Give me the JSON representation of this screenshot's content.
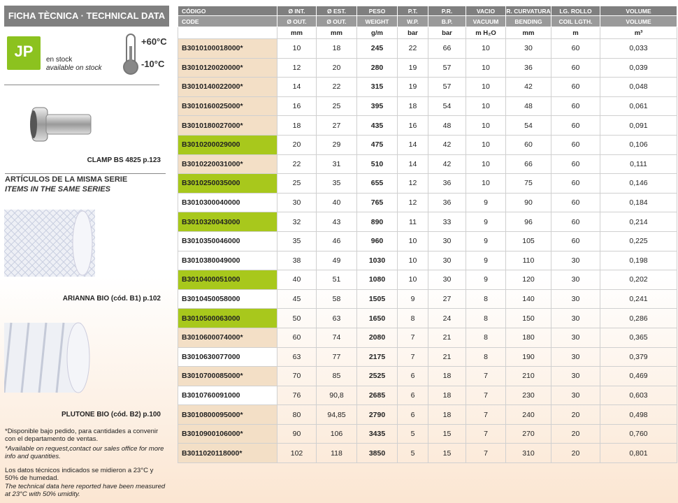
{
  "sidebar": {
    "title": "FICHA TÈCNICA · TECHNICAL DATA",
    "logo": "JP",
    "stock_es": "en stock",
    "stock_en": "available on stock",
    "temp_max": "+60°C",
    "temp_min": "-10°C",
    "clamp_caption": "CLAMP BS 4825 p.123",
    "series_title_es": "ARTÍCULOS DE LA MISMA SERIE",
    "series_title_en": "ITEMS IN THE SAME SERIES",
    "item1_caption": "ARIANNA BIO (cód. B1) p.102",
    "item2_caption": "PLUTONE BIO (cód. B2) p.100",
    "note1_es": "*Disponible bajo pedido, para cantidades a convenir con el departamento de ventas.",
    "note1_en": "*Available on request,contact our sales office for more info and quantities.",
    "note2_es": "Los datos técnicos indicados se midieron a 23°C y 50% de humedad.",
    "note2_en": "The technical data here reported have been measured at 23°C with 50% umidity."
  },
  "table": {
    "header_es": [
      "CÓDIGO",
      "Ø INT.",
      "Ø EST.",
      "PESO",
      "P.T.",
      "P.R.",
      "VACIO",
      "R. CURVATURA",
      "LG. ROLLO",
      "VOLUME"
    ],
    "header_en": [
      "CODE",
      "Ø OUT.",
      "Ø OUT.",
      "WEIGHT",
      "W.P.",
      "B.P.",
      "VACUUM",
      "BENDING",
      "COIL LGTH.",
      "VOLUME"
    ],
    "units": [
      "",
      "mm",
      "mm",
      "g/m",
      "bar",
      "bar",
      "m H₂O",
      "mm",
      "m",
      "m³"
    ],
    "row_colors": {
      "stock": "#a8c81c",
      "request": "#f3dfc6",
      "other": "#ffffff"
    },
    "rows": [
      {
        "status": "request",
        "cells": [
          "B3010100018000*",
          "10",
          "18",
          "245",
          "22",
          "66",
          "10",
          "30",
          "60",
          "0,033"
        ]
      },
      {
        "status": "request",
        "cells": [
          "B3010120020000*",
          "12",
          "20",
          "280",
          "19",
          "57",
          "10",
          "36",
          "60",
          "0,039"
        ]
      },
      {
        "status": "request",
        "cells": [
          "B3010140022000*",
          "14",
          "22",
          "315",
          "19",
          "57",
          "10",
          "42",
          "60",
          "0,048"
        ]
      },
      {
        "status": "request",
        "cells": [
          "B3010160025000*",
          "16",
          "25",
          "395",
          "18",
          "54",
          "10",
          "48",
          "60",
          "0,061"
        ]
      },
      {
        "status": "request",
        "cells": [
          "B3010180027000*",
          "18",
          "27",
          "435",
          "16",
          "48",
          "10",
          "54",
          "60",
          "0,091"
        ]
      },
      {
        "status": "stock",
        "cells": [
          "B3010200029000",
          "20",
          "29",
          "475",
          "14",
          "42",
          "10",
          "60",
          "60",
          "0,106"
        ]
      },
      {
        "status": "request",
        "cells": [
          "B3010220031000*",
          "22",
          "31",
          "510",
          "14",
          "42",
          "10",
          "66",
          "60",
          "0,111"
        ]
      },
      {
        "status": "stock",
        "cells": [
          "B3010250035000",
          "25",
          "35",
          "655",
          "12",
          "36",
          "10",
          "75",
          "60",
          "0,146"
        ]
      },
      {
        "status": "other",
        "cells": [
          "B3010300040000",
          "30",
          "40",
          "765",
          "12",
          "36",
          "9",
          "90",
          "60",
          "0,184"
        ]
      },
      {
        "status": "stock",
        "cells": [
          "B3010320043000",
          "32",
          "43",
          "890",
          "11",
          "33",
          "9",
          "96",
          "60",
          "0,214"
        ]
      },
      {
        "status": "other",
        "cells": [
          "B3010350046000",
          "35",
          "46",
          "960",
          "10",
          "30",
          "9",
          "105",
          "60",
          "0,225"
        ]
      },
      {
        "status": "other",
        "cells": [
          "B3010380049000",
          "38",
          "49",
          "1030",
          "10",
          "30",
          "9",
          "110",
          "30",
          "0,198"
        ]
      },
      {
        "status": "stock",
        "cells": [
          "B3010400051000",
          "40",
          "51",
          "1080",
          "10",
          "30",
          "9",
          "120",
          "30",
          "0,202"
        ]
      },
      {
        "status": "other",
        "cells": [
          "B3010450058000",
          "45",
          "58",
          "1505",
          "9",
          "27",
          "8",
          "140",
          "30",
          "0,241"
        ]
      },
      {
        "status": "stock",
        "cells": [
          "B3010500063000",
          "50",
          "63",
          "1650",
          "8",
          "24",
          "8",
          "150",
          "30",
          "0,286"
        ]
      },
      {
        "status": "request",
        "cells": [
          "B3010600074000*",
          "60",
          "74",
          "2080",
          "7",
          "21",
          "8",
          "180",
          "30",
          "0,365"
        ]
      },
      {
        "status": "other",
        "cells": [
          "B3010630077000",
          "63",
          "77",
          "2175",
          "7",
          "21",
          "8",
          "190",
          "30",
          "0,379"
        ]
      },
      {
        "status": "request",
        "cells": [
          "B3010700085000*",
          "70",
          "85",
          "2525",
          "6",
          "18",
          "7",
          "210",
          "30",
          "0,469"
        ]
      },
      {
        "status": "other",
        "cells": [
          "B3010760091000",
          "76",
          "90,8",
          "2685",
          "6",
          "18",
          "7",
          "230",
          "30",
          "0,603"
        ]
      },
      {
        "status": "request",
        "cells": [
          "B3010800095000*",
          "80",
          "94,85",
          "2790",
          "6",
          "18",
          "7",
          "240",
          "20",
          "0,498"
        ]
      },
      {
        "status": "request",
        "cells": [
          "B3010900106000*",
          "90",
          "106",
          "3435",
          "5",
          "15",
          "7",
          "270",
          "20",
          "0,760"
        ]
      },
      {
        "status": "request",
        "cells": [
          "B3011020118000*",
          "102",
          "118",
          "3850",
          "5",
          "15",
          "7",
          "310",
          "20",
          "0,801"
        ]
      }
    ]
  }
}
